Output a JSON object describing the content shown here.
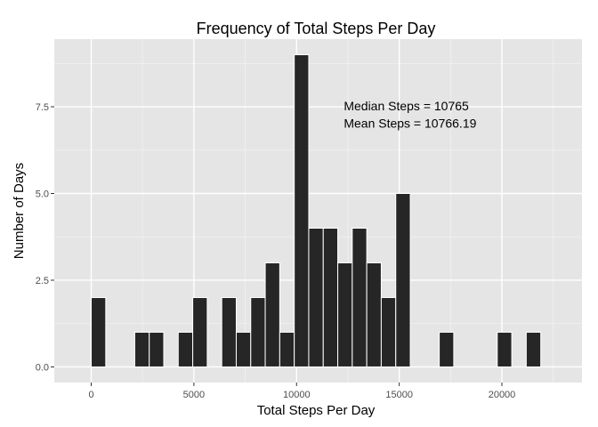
{
  "chart_data": {
    "type": "bar",
    "title": "Frequency of Total Steps Per Day",
    "xlabel": "Total Steps Per Day",
    "ylabel": "Number of Days",
    "bin_width": 706.2,
    "bins": [
      {
        "x": 353,
        "count": 2
      },
      {
        "x": 2472,
        "count": 1
      },
      {
        "x": 3178,
        "count": 1
      },
      {
        "x": 4590,
        "count": 1
      },
      {
        "x": 5296,
        "count": 2
      },
      {
        "x": 6709,
        "count": 2
      },
      {
        "x": 7415,
        "count": 1
      },
      {
        "x": 8121,
        "count": 2
      },
      {
        "x": 8827,
        "count": 3
      },
      {
        "x": 9534,
        "count": 1
      },
      {
        "x": 10240,
        "count": 9
      },
      {
        "x": 10946,
        "count": 4
      },
      {
        "x": 11652,
        "count": 4
      },
      {
        "x": 12359,
        "count": 3
      },
      {
        "x": 13065,
        "count": 4
      },
      {
        "x": 13771,
        "count": 3
      },
      {
        "x": 14477,
        "count": 2
      },
      {
        "x": 15184,
        "count": 5
      },
      {
        "x": 17302,
        "count": 1
      },
      {
        "x": 20127,
        "count": 1
      },
      {
        "x": 21539,
        "count": 1
      }
    ],
    "xlim": [
      -1800,
      23900
    ],
    "ylim": [
      -0.45,
      9.45
    ],
    "xticks": [
      0,
      5000,
      10000,
      15000,
      20000
    ],
    "xtick_labels": [
      "0",
      "5000",
      "10000",
      "15000",
      "20000"
    ],
    "yticks": [
      0,
      2.5,
      5,
      7.5
    ],
    "ytick_labels": [
      "0.0",
      "2.5",
      "5.0",
      "7.5"
    ],
    "grid": true,
    "colors": {
      "panel": "#e5e5e5",
      "bar_fill": "#262626",
      "bar_edge": "#ffffff",
      "grid_major": "#ffffff",
      "grid_minor": "#f2f2f2",
      "tick_text": "#4d4d4d"
    },
    "annotations": [
      {
        "text": "Median Steps = 10765",
        "x": 12300,
        "y": 7.4
      },
      {
        "text": "Mean Steps =  10766.19",
        "x": 12300,
        "y": 6.9
      }
    ]
  }
}
